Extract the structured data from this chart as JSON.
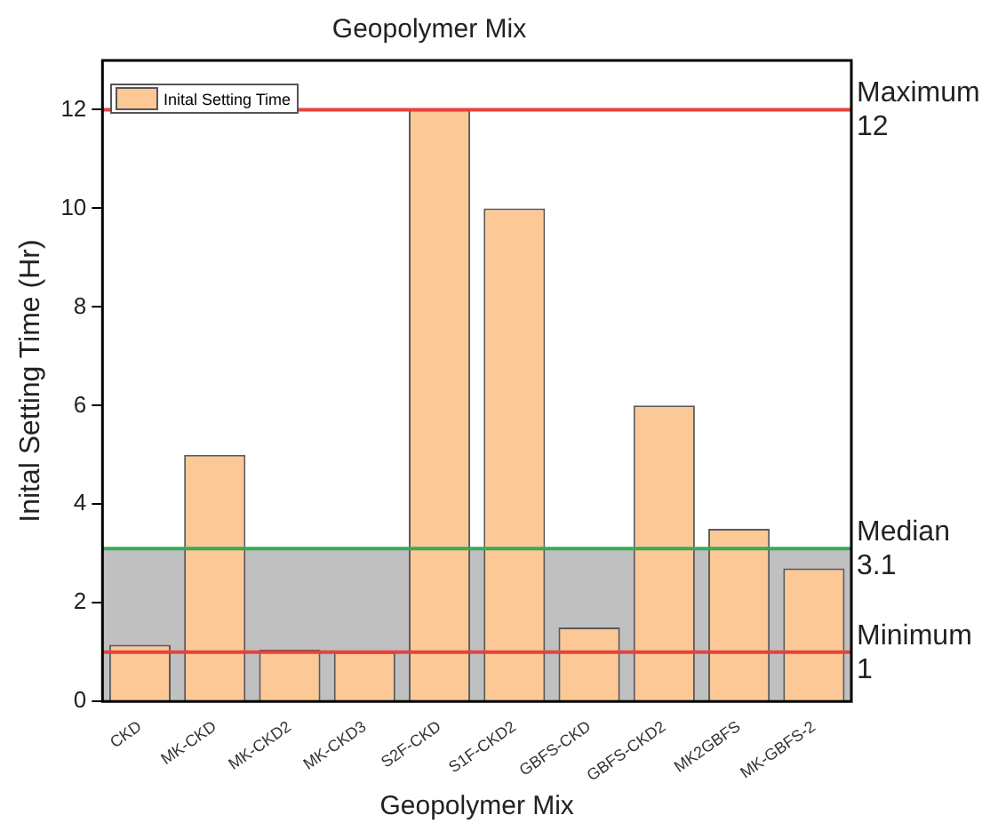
{
  "chart_data": {
    "type": "bar",
    "title": "Geopolymer Mix",
    "xlabel": "Geopolymer Mix",
    "ylabel": "Inital Setting Time (Hr)",
    "categories": [
      "CKD",
      "MK-CKD",
      "MK-CKD2",
      "MK-CKD3",
      "S2F-CKD",
      "S1F-CKD2",
      "GBFS-CKD",
      "GBFS-CKD2",
      "MK2GBFS",
      "MK-GBFS-2"
    ],
    "series": [
      {
        "name": "Inital Setting Time",
        "color": "#fbc896",
        "values": [
          1.15,
          5,
          1.05,
          1,
          12,
          10,
          1.5,
          6,
          3.5,
          2.7
        ]
      }
    ],
    "ylim": [
      0,
      13
    ],
    "yticks": [
      0,
      2,
      4,
      6,
      8,
      10,
      12
    ],
    "ref_lines": [
      {
        "axis": "y",
        "value": 12,
        "label": "Maximum\n12",
        "color": "#e8413c"
      },
      {
        "axis": "y",
        "value": 3.1,
        "label": "Median\n3.1",
        "color": "#3aaa55"
      },
      {
        "axis": "y",
        "value": 1,
        "label": "Minimum\n1",
        "color": "#e8413c"
      }
    ],
    "bands": [
      {
        "axis": "y",
        "from": 0,
        "to": 3.1,
        "color": "#c0c0c0"
      }
    ],
    "legend": "top left",
    "grid": false
  }
}
